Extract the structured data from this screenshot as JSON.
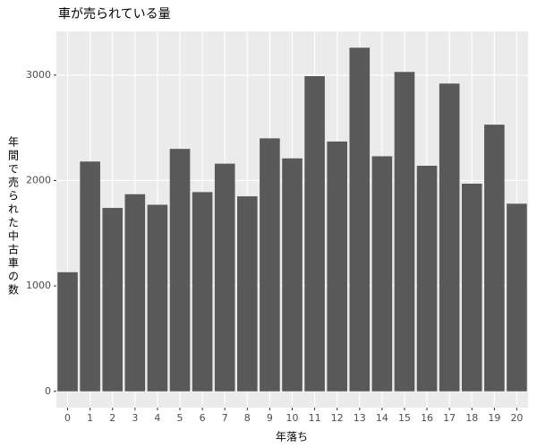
{
  "chart_data": {
    "type": "bar",
    "title": "車が売られている量",
    "x_label": "年落ち",
    "y_label": "年間で売られた中古車の数",
    "categories": [
      "0",
      "1",
      "2",
      "3",
      "4",
      "5",
      "6",
      "7",
      "8",
      "9",
      "10",
      "11",
      "12",
      "13",
      "14",
      "15",
      "16",
      "17",
      "18",
      "19",
      "20"
    ],
    "values": [
      1130,
      2180,
      1740,
      1870,
      1770,
      2300,
      1890,
      2160,
      1850,
      2400,
      2210,
      2990,
      2370,
      3260,
      2230,
      3030,
      2140,
      2920,
      1970,
      2530,
      1780
    ],
    "color": "#595959",
    "ylim": [
      -155,
      3415
    ],
    "yticks": [
      0,
      1000,
      2000,
      3000
    ],
    "grid": true
  }
}
